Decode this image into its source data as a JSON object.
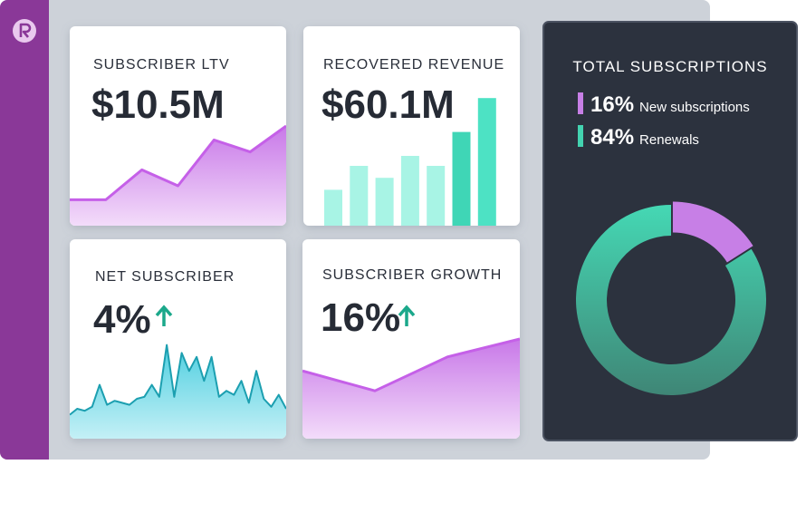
{
  "cards": [
    {
      "title": "SUBSCRIBER LTV",
      "value": "$10.5M",
      "chart": {
        "type": "area",
        "color": "#c560e8",
        "values": [
          13,
          13,
          28,
          20,
          43,
          37,
          50
        ]
      }
    },
    {
      "title": "RECOVERED REVENUE",
      "value": "$60.1M",
      "chart": {
        "type": "bar",
        "colors": [
          "#a8f4e5",
          "#a8f4e5",
          "#a8f4e5",
          "#a8f4e5",
          "#a8f4e5",
          "#3fd6b6",
          "#4de2c4"
        ],
        "values": [
          18,
          30,
          24,
          35,
          30,
          47,
          64
        ]
      }
    },
    {
      "title": "NET SUBSCRIBER",
      "value": "4%",
      "chart": {
        "type": "spike",
        "color": "#1c9fb0",
        "values": [
          12,
          15,
          14,
          16,
          27,
          17,
          19,
          18,
          17,
          20,
          21,
          27,
          21,
          47,
          21,
          43,
          34,
          41,
          29,
          41,
          21,
          24,
          22,
          29,
          18,
          34,
          20,
          16,
          22,
          15
        ]
      }
    },
    {
      "title": "SUBSCRIBER GROWTH",
      "value": "16%",
      "chart": {
        "type": "area",
        "color": "#c560e8",
        "values": [
          34,
          24,
          41,
          50
        ]
      }
    }
  ],
  "panel": {
    "title": "TOTAL SUBSCRIPTIONS",
    "segments": [
      {
        "name": "New subscriptions",
        "value": 16,
        "label": "16%",
        "color": "#c77fe6"
      },
      {
        "name": "Renewals",
        "value": 84,
        "label": "84%",
        "color": "#43d3b0"
      }
    ]
  }
}
